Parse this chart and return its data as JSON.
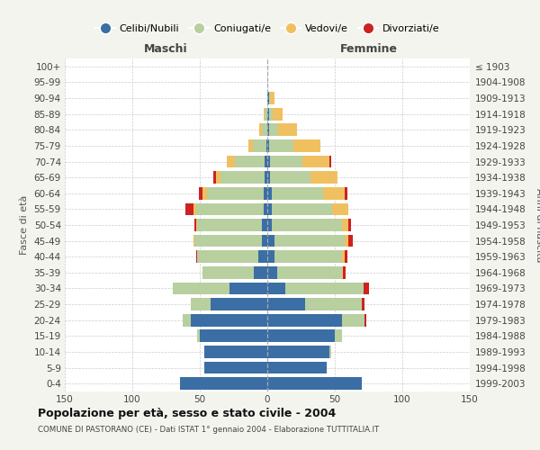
{
  "age_groups": [
    "100+",
    "95-99",
    "90-94",
    "85-89",
    "80-84",
    "75-79",
    "70-74",
    "65-69",
    "60-64",
    "55-59",
    "50-54",
    "45-49",
    "40-44",
    "35-39",
    "30-34",
    "25-29",
    "20-24",
    "15-19",
    "10-14",
    "5-9",
    "0-4"
  ],
  "birth_years": [
    "≤ 1903",
    "1904-1908",
    "1909-1913",
    "1914-1918",
    "1919-1923",
    "1924-1928",
    "1929-1933",
    "1934-1938",
    "1939-1943",
    "1944-1948",
    "1949-1953",
    "1954-1958",
    "1959-1963",
    "1964-1968",
    "1969-1973",
    "1974-1978",
    "1979-1983",
    "1984-1988",
    "1989-1993",
    "1994-1998",
    "1999-2003"
  ],
  "colors": {
    "celibi": "#3a6ea5",
    "coniugati": "#b8cfa0",
    "vedovi": "#f0c060",
    "divorziati": "#cc2222"
  },
  "maschi": {
    "celibi": [
      0,
      0,
      0,
      0,
      0,
      1,
      2,
      2,
      3,
      3,
      4,
      4,
      7,
      10,
      28,
      42,
      57,
      50,
      47,
      47,
      65
    ],
    "coniugati": [
      0,
      0,
      0,
      2,
      4,
      10,
      22,
      33,
      42,
      50,
      48,
      50,
      45,
      38,
      42,
      15,
      6,
      2,
      0,
      0,
      0
    ],
    "vedovi": [
      0,
      0,
      0,
      1,
      2,
      3,
      6,
      3,
      3,
      2,
      1,
      1,
      0,
      0,
      0,
      0,
      0,
      0,
      0,
      0,
      0
    ],
    "divorziati": [
      0,
      0,
      0,
      0,
      0,
      0,
      0,
      2,
      3,
      6,
      1,
      0,
      1,
      0,
      0,
      0,
      0,
      0,
      0,
      0,
      0
    ]
  },
  "femmine": {
    "celibi": [
      0,
      0,
      1,
      1,
      1,
      1,
      2,
      2,
      3,
      3,
      3,
      5,
      5,
      7,
      13,
      28,
      55,
      50,
      46,
      44,
      70
    ],
    "coniugati": [
      0,
      0,
      1,
      3,
      7,
      18,
      24,
      30,
      38,
      45,
      52,
      52,
      50,
      48,
      58,
      42,
      17,
      5,
      1,
      0,
      0
    ],
    "vedovi": [
      0,
      0,
      3,
      7,
      14,
      20,
      20,
      20,
      16,
      12,
      5,
      3,
      2,
      1,
      0,
      0,
      0,
      0,
      0,
      0,
      0
    ],
    "divorziati": [
      0,
      0,
      0,
      0,
      0,
      0,
      1,
      0,
      2,
      0,
      2,
      3,
      2,
      2,
      4,
      2,
      1,
      0,
      0,
      0,
      0
    ]
  },
  "title": "Popolazione per età, sesso e stato civile - 2004",
  "subtitle": "COMUNE DI PASTORANO (CE) - Dati ISTAT 1° gennaio 2004 - Elaborazione TUTTITALIA.IT",
  "label_maschi": "Maschi",
  "label_femmine": "Femmine",
  "ylabel_left": "Fasce di età",
  "ylabel_right": "Anni di nascita",
  "xlim": 150,
  "legend_labels": [
    "Celibi/Nubili",
    "Coniugati/e",
    "Vedovi/e",
    "Divorziati/e"
  ],
  "bg_color": "#f4f4ee",
  "plot_bg": "#ffffff"
}
